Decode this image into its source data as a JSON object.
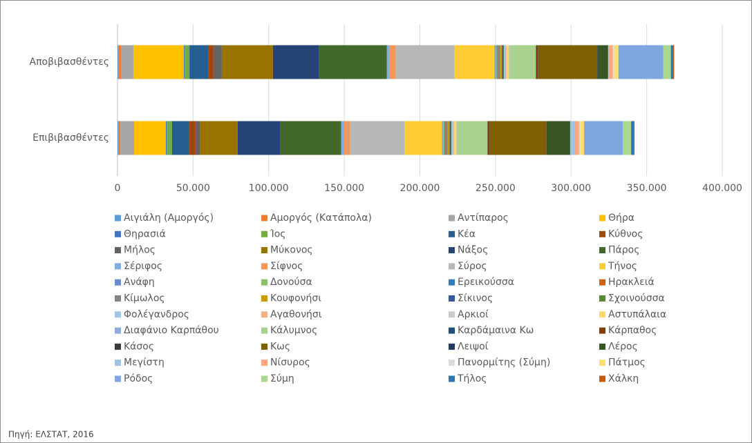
{
  "chart_data": {
    "type": "stacked-bar-horizontal",
    "categories": [
      "Αποβιβασθέντες",
      "Επιβιβασθέντες"
    ],
    "xlim": [
      0,
      400000
    ],
    "xticks": [
      0,
      {
        "value": 50000,
        "label": "50.000"
      },
      {
        "value": 100000,
        "label": "100.000"
      },
      {
        "value": 150000,
        "label": "150.000"
      },
      {
        "value": 200000,
        "label": "200.000"
      },
      {
        "value": 250000,
        "label": "250.000"
      },
      {
        "value": 300000,
        "label": "300.000"
      },
      {
        "value": 350000,
        "label": "350.000"
      },
      {
        "value": 400000,
        "label": "400.000"
      }
    ],
    "grid": true,
    "legend": "bottom",
    "source": "Πηγή: ΕΛΣΤΑΤ, 2016",
    "series": [
      {
        "name": "Αιγιάλη (Αμοργός)",
        "color": "#5b9bd5",
        "values": [
          500,
          500
        ]
      },
      {
        "name": "Αμοργός (Κατάπολα)",
        "color": "#ed7d31",
        "values": [
          1800,
          1400
        ]
      },
      {
        "name": "Αντίπαρος",
        "color": "#a5a5a5",
        "values": [
          8200,
          9100
        ]
      },
      {
        "name": "Θήρα",
        "color": "#ffc000",
        "values": [
          33400,
          21000
        ]
      },
      {
        "name": "Θηρασιά",
        "color": "#4472c4",
        "values": [
          500,
          500
        ]
      },
      {
        "name": "Ίος",
        "color": "#70ad47",
        "values": [
          3200,
          3600
        ]
      },
      {
        "name": "Κέα",
        "color": "#255e91",
        "values": [
          12300,
          11400
        ]
      },
      {
        "name": "Κύθνος",
        "color": "#9e480e",
        "values": [
          3600,
          4100
        ]
      },
      {
        "name": "Μήλος",
        "color": "#636363",
        "values": [
          5500,
          3200
        ]
      },
      {
        "name": "Μύκονος",
        "color": "#997300",
        "values": [
          33800,
          24700
        ]
      },
      {
        "name": "Νάξος",
        "color": "#264478",
        "values": [
          30600,
          28300
        ]
      },
      {
        "name": "Πάρος",
        "color": "#43682b",
        "values": [
          44800,
          40200
        ]
      },
      {
        "name": "Σέριφος",
        "color": "#7cafdd",
        "values": [
          1800,
          1800
        ]
      },
      {
        "name": "Σίφνος",
        "color": "#f1975a",
        "values": [
          4100,
          4100
        ]
      },
      {
        "name": "Σύρος",
        "color": "#b7b7b7",
        "values": [
          38800,
          36100
        ]
      },
      {
        "name": "Τήνος",
        "color": "#ffcd33",
        "values": [
          26500,
          24700
        ]
      },
      {
        "name": "Ανάφη",
        "color": "#698ed0",
        "values": [
          500,
          500
        ]
      },
      {
        "name": "Δονούσα",
        "color": "#8cc168",
        "values": [
          900,
          900
        ]
      },
      {
        "name": "Ερεικούσσα",
        "color": "#327dc2",
        "values": [
          300,
          300
        ]
      },
      {
        "name": "Ηρακλειά",
        "color": "#d26012",
        "values": [
          500,
          500
        ]
      },
      {
        "name": "Κίμωλος",
        "color": "#848484",
        "values": [
          1400,
          1400
        ]
      },
      {
        "name": "Κουφονήσι",
        "color": "#cc9a00",
        "values": [
          1400,
          1400
        ]
      },
      {
        "name": "Σίκινος",
        "color": "#335aa1",
        "values": [
          900,
          900
        ]
      },
      {
        "name": "Σχοινούσσα",
        "color": "#5a8a39",
        "values": [
          300,
          300
        ]
      },
      {
        "name": "Φολέγανδρος",
        "color": "#a2c4e8",
        "values": [
          1400,
          1400
        ]
      },
      {
        "name": "Αγαθονήσι",
        "color": "#f4b183",
        "values": [
          400,
          400
        ]
      },
      {
        "name": "Αρκιοί",
        "color": "#c9c9c9",
        "values": [
          300,
          300
        ]
      },
      {
        "name": "Αστυπάλαια",
        "color": "#ffd966",
        "values": [
          1300,
          1300
        ]
      },
      {
        "name": "Διαφάνιο Καρπάθου",
        "color": "#8faadc",
        "values": [
          300,
          300
        ]
      },
      {
        "name": "Κάλυμνος",
        "color": "#a9d18e",
        "values": [
          17400,
          20100
        ]
      },
      {
        "name": "Καρδάμαινα Κω",
        "color": "#1f4e79",
        "values": [
          300,
          300
        ]
      },
      {
        "name": "Κάρπαθος",
        "color": "#843c0c",
        "values": [
          1000,
          1000
        ]
      },
      {
        "name": "Κάσος",
        "color": "#3b3b3b",
        "values": [
          300,
          300
        ]
      },
      {
        "name": "Κως",
        "color": "#7f6000",
        "values": [
          38800,
          37500
        ]
      },
      {
        "name": "Λειψοί",
        "color": "#203864",
        "values": [
          500,
          500
        ]
      },
      {
        "name": "Λέρος",
        "color": "#375623",
        "values": [
          6900,
          15100
        ]
      },
      {
        "name": "Μεγίστη",
        "color": "#9dc3e6",
        "values": [
          400,
          3200
        ]
      },
      {
        "name": "Νίσυρος",
        "color": "#f8a87a",
        "values": [
          2700,
          2700
        ]
      },
      {
        "name": "Πανορμίτης (Σύμη)",
        "color": "#dbdbdb",
        "values": [
          1000,
          1000
        ]
      },
      {
        "name": "Πάτμος",
        "color": "#ffdf70",
        "values": [
          2700,
          2300
        ]
      },
      {
        "name": "Ρόδος",
        "color": "#7ea6e0",
        "values": [
          29700,
          25600
        ]
      },
      {
        "name": "Σύμη",
        "color": "#a9d98e",
        "values": [
          5000,
          5500
        ]
      },
      {
        "name": "Τήλος",
        "color": "#2e75b6",
        "values": [
          1500,
          1800
        ]
      },
      {
        "name": "Χάλκη",
        "color": "#c55a11",
        "values": [
          700,
          500
        ]
      }
    ]
  }
}
